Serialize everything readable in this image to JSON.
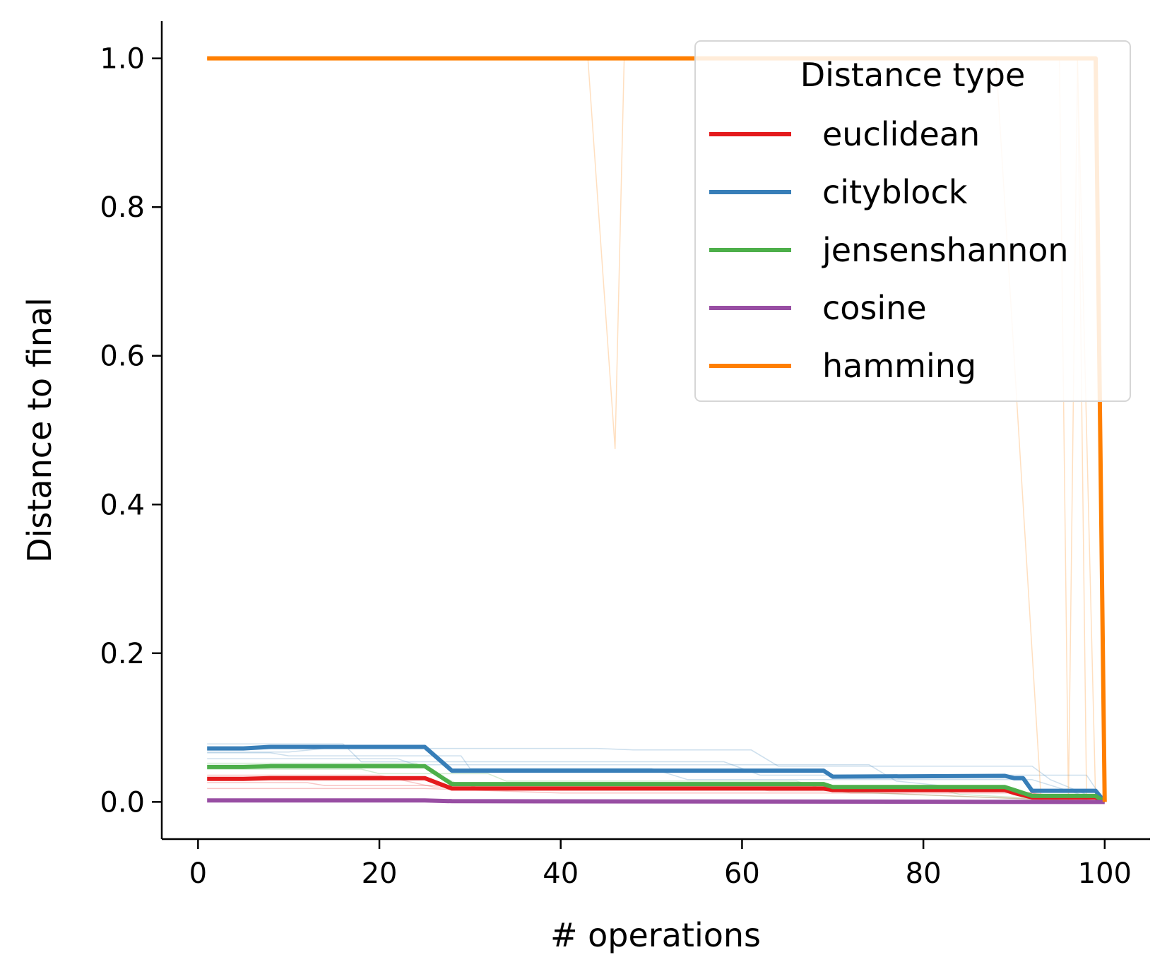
{
  "chart_data": {
    "type": "line",
    "xlabel": "# operations",
    "ylabel": "Distance to final",
    "xlim": [
      -4,
      105
    ],
    "ylim": [
      -0.05,
      1.05
    ],
    "x_ticks": [
      "0",
      "20",
      "40",
      "60",
      "80",
      "100"
    ],
    "y_ticks": [
      "0.0",
      "0.2",
      "0.4",
      "0.6",
      "0.8",
      "1.0"
    ],
    "grid": false,
    "legend": {
      "title": "Distance type",
      "placement": "top-right"
    },
    "series": [
      {
        "name": "euclidean",
        "color": "#e41a1c",
        "points": [
          [
            1,
            0.031
          ],
          [
            5,
            0.031
          ],
          [
            8,
            0.032
          ],
          [
            25,
            0.032
          ],
          [
            28,
            0.018
          ],
          [
            69,
            0.018
          ],
          [
            70,
            0.016
          ],
          [
            89,
            0.016
          ],
          [
            90,
            0.012
          ],
          [
            92,
            0.006
          ],
          [
            99,
            0.006
          ],
          [
            100,
            0.0
          ]
        ],
        "runs": [
          [
            [
              1,
              0.026
            ],
            [
              12,
              0.026
            ],
            [
              14,
              0.022
            ],
            [
              30,
              0.022
            ],
            [
              32,
              0.016
            ],
            [
              70,
              0.016
            ],
            [
              72,
              0.012
            ],
            [
              92,
              0.012
            ],
            [
              94,
              0.005
            ],
            [
              100,
              0.0
            ]
          ],
          [
            [
              1,
              0.036
            ],
            [
              20,
              0.036
            ],
            [
              26,
              0.02
            ],
            [
              60,
              0.02
            ],
            [
              63,
              0.015
            ],
            [
              90,
              0.015
            ],
            [
              100,
              0.0
            ]
          ],
          [
            [
              1,
              0.018
            ],
            [
              25,
              0.018
            ],
            [
              40,
              0.012
            ],
            [
              75,
              0.012
            ],
            [
              100,
              0.0
            ]
          ]
        ]
      },
      {
        "name": "cityblock",
        "color": "#377eb8",
        "points": [
          [
            1,
            0.072
          ],
          [
            5,
            0.072
          ],
          [
            8,
            0.074
          ],
          [
            25,
            0.074
          ],
          [
            28,
            0.042
          ],
          [
            69,
            0.042
          ],
          [
            70,
            0.034
          ],
          [
            89,
            0.035
          ],
          [
            90,
            0.032
          ],
          [
            91,
            0.032
          ],
          [
            92,
            0.015
          ],
          [
            99,
            0.015
          ],
          [
            100,
            0.0
          ]
        ],
        "runs": [
          [
            [
              1,
              0.067
            ],
            [
              10,
              0.067
            ],
            [
              14,
              0.072
            ],
            [
              44,
              0.072
            ],
            [
              48,
              0.07
            ],
            [
              61,
              0.07
            ],
            [
              64,
              0.048
            ],
            [
              92,
              0.048
            ],
            [
              94,
              0.03
            ],
            [
              100,
              0.0
            ]
          ],
          [
            [
              1,
              0.066
            ],
            [
              8,
              0.066
            ],
            [
              10,
              0.062
            ],
            [
              29,
              0.062
            ],
            [
              30,
              0.045
            ],
            [
              50,
              0.045
            ],
            [
              54,
              0.03
            ],
            [
              92,
              0.03
            ],
            [
              100,
              0.0
            ]
          ],
          [
            [
              1,
              0.078
            ],
            [
              16,
              0.078
            ],
            [
              18,
              0.054
            ],
            [
              58,
              0.054
            ],
            [
              62,
              0.036
            ],
            [
              98,
              0.036
            ],
            [
              100,
              0.0
            ]
          ],
          [
            [
              1,
              0.058
            ],
            [
              22,
              0.058
            ],
            [
              24,
              0.05
            ],
            [
              74,
              0.05
            ],
            [
              77,
              0.028
            ],
            [
              100,
              0.0
            ]
          ]
        ]
      },
      {
        "name": "jensenshannon",
        "color": "#4daf4a",
        "points": [
          [
            1,
            0.047
          ],
          [
            5,
            0.047
          ],
          [
            8,
            0.048
          ],
          [
            25,
            0.048
          ],
          [
            28,
            0.024
          ],
          [
            69,
            0.024
          ],
          [
            70,
            0.02
          ],
          [
            89,
            0.02
          ],
          [
            90,
            0.016
          ],
          [
            92,
            0.008
          ],
          [
            99,
            0.008
          ],
          [
            100,
            0.0
          ]
        ],
        "runs": [
          [
            [
              1,
              0.044
            ],
            [
              18,
              0.044
            ],
            [
              20,
              0.038
            ],
            [
              32,
              0.038
            ],
            [
              34,
              0.028
            ],
            [
              66,
              0.028
            ],
            [
              70,
              0.014
            ],
            [
              100,
              0.0
            ]
          ],
          [
            [
              1,
              0.052
            ],
            [
              24,
              0.052
            ],
            [
              29,
              0.022
            ],
            [
              80,
              0.022
            ],
            [
              84,
              0.01
            ],
            [
              100,
              0.0
            ]
          ]
        ]
      },
      {
        "name": "cosine",
        "color": "#984ea3",
        "points": [
          [
            1,
            0.002
          ],
          [
            25,
            0.002
          ],
          [
            28,
            0.001
          ],
          [
            100,
            0.0
          ]
        ],
        "runs": []
      },
      {
        "name": "hamming",
        "color": "#ff7f00",
        "points": [
          [
            1,
            1.0
          ],
          [
            99,
            1.0
          ],
          [
            100,
            0.0
          ]
        ],
        "runs": [
          [
            [
              1,
              1.0
            ],
            [
              43,
              1.0
            ],
            [
              46,
              0.475
            ],
            [
              47,
              1.0
            ],
            [
              99,
              1.0
            ],
            [
              100,
              0.0
            ]
          ],
          [
            [
              1,
              1.0
            ],
            [
              88,
              1.0
            ],
            [
              93,
              0.0
            ],
            [
              100,
              0.0
            ]
          ],
          [
            [
              1,
              1.0
            ],
            [
              95,
              1.0
            ],
            [
              96,
              0.0
            ],
            [
              97,
              1.0
            ],
            [
              98,
              0.0
            ],
            [
              100,
              0.0
            ]
          ],
          [
            [
              1,
              1.0
            ],
            [
              97,
              1.0
            ],
            [
              99,
              0.0
            ],
            [
              100,
              0.0
            ]
          ]
        ]
      }
    ]
  }
}
